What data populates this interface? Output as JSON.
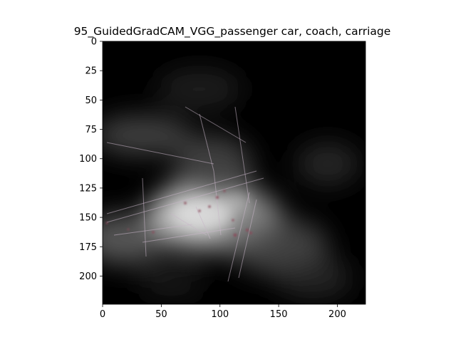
{
  "figure": {
    "title": "95_GuidedGradCAM_VGG_passenger car, coach, carriage",
    "background_color": "#ffffff"
  },
  "image": {
    "x_range": [
      0,
      224
    ],
    "y_range": [
      0,
      224
    ],
    "y_inverted": true,
    "colors": {
      "base": "#000000",
      "glow": "#d8d8d8",
      "mid": "#6e6e6e",
      "edge": "#c8b6c8",
      "dot": "#8a4a5a"
    }
  },
  "x_axis": {
    "ticks": [
      0,
      50,
      100,
      150,
      200
    ],
    "tick_labels": [
      "0",
      "50",
      "100",
      "150",
      "200"
    ]
  },
  "y_axis": {
    "ticks": [
      0,
      25,
      50,
      75,
      100,
      125,
      150,
      175,
      200
    ],
    "tick_labels": [
      "0",
      "25",
      "50",
      "75",
      "100",
      "125",
      "150",
      "175",
      "200"
    ]
  }
}
